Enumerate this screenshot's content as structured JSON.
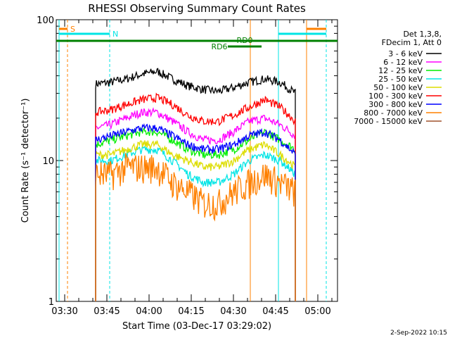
{
  "chart_data": {
    "type": "line",
    "title": "RHESSI Observing Summary Count Rates",
    "xlabel": "Start Time (03-Dec-17 03:29:02)",
    "ylabel": "Count Rate (s⁻¹ detector⁻¹)",
    "y_scale": "log",
    "ylim": [
      1,
      100
    ],
    "y_ticks": [
      "1",
      "10",
      "100"
    ],
    "x_range": [
      "03:27",
      "05:07"
    ],
    "x_ticks": [
      "03:30",
      "03:45",
      "04:00",
      "04:15",
      "04:30",
      "04:45",
      "05:00"
    ],
    "legend_header": [
      "Det 1,3,8,",
      "FDecim 1, Att 0"
    ],
    "legend_position": "right",
    "series": [
      {
        "name": "3 - 6 keV",
        "color": "#000000",
        "values": [
          35,
          36,
          38,
          41,
          43,
          38,
          34,
          32,
          31,
          33,
          36,
          38,
          36,
          30
        ]
      },
      {
        "name": "6 - 12 keV",
        "color": "#ff00ff",
        "values": [
          17,
          18,
          20,
          22,
          22,
          19,
          16,
          14,
          14,
          16,
          19,
          20,
          18,
          15
        ]
      },
      {
        "name": "12 - 25 keV",
        "color": "#00ee00",
        "values": [
          13,
          14,
          15,
          16,
          16,
          14,
          12,
          11,
          11,
          12,
          14,
          16,
          14,
          12
        ]
      },
      {
        "name": "25 - 50 keV",
        "color": "#00e5e5",
        "values": [
          10,
          10,
          11,
          12,
          12,
          10,
          8,
          7,
          7,
          8,
          10,
          11,
          10,
          8
        ]
      },
      {
        "name": "50 - 100 keV",
        "color": "#dddd00",
        "values": [
          11,
          11,
          12,
          13,
          13,
          11,
          10,
          9,
          9,
          10,
          12,
          13,
          11,
          9
        ]
      },
      {
        "name": "100 - 300 keV",
        "color": "#ff0000",
        "values": [
          22,
          23,
          25,
          27,
          28,
          25,
          21,
          19,
          19,
          21,
          24,
          27,
          24,
          19
        ]
      },
      {
        "name": "300 - 800 keV",
        "color": "#0000ff",
        "values": [
          14,
          15,
          16,
          17,
          17,
          15,
          13,
          12,
          12,
          13,
          15,
          16,
          14,
          11
        ]
      },
      {
        "name": "800 - 7000 keV",
        "color": "#ff8000",
        "values": [
          8,
          8,
          9,
          9,
          9,
          7,
          6,
          5,
          5,
          6,
          7,
          8,
          7,
          6
        ]
      },
      {
        "name": "7000 - 15000 keV",
        "color": "#a0522d",
        "values": []
      }
    ],
    "annotations": [
      {
        "text": "S",
        "color": "#ff8000"
      },
      {
        "text": "N",
        "color": "#00e5e5"
      },
      {
        "text": "RD0",
        "color": "#008000"
      },
      {
        "text": "RD6",
        "color": "#008000"
      }
    ],
    "grid": false
  },
  "footer": {
    "timestamp": "2-Sep-2022 10:15"
  }
}
